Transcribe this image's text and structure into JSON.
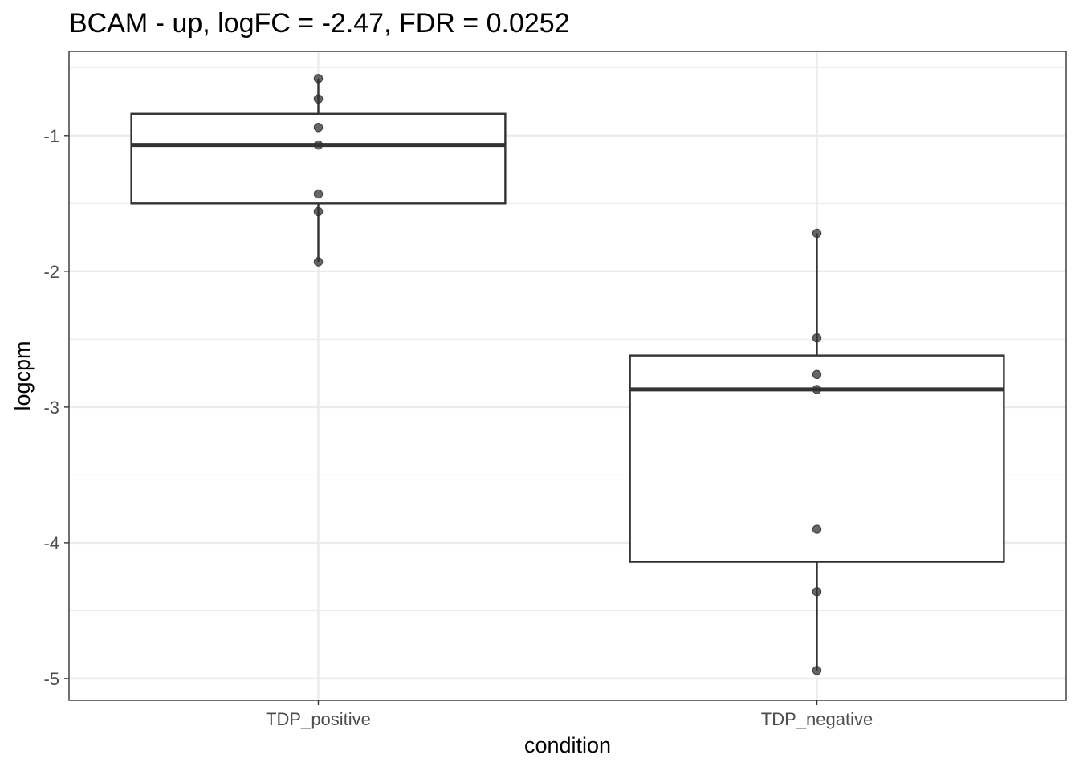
{
  "chart_data": {
    "type": "box",
    "title": "BCAM - up, logFC = -2.47, FDR = 0.0252",
    "xlabel": "condition",
    "ylabel": "logcpm",
    "categories": [
      "TDP_positive",
      "TDP_negative"
    ],
    "ylim": [
      -5.16,
      -0.38
    ],
    "yticks": [
      -1,
      -2,
      -3,
      -4,
      -5
    ],
    "ytick_labels": [
      "-1",
      "-2",
      "-3",
      "-4",
      "-5"
    ],
    "grid": true,
    "legend": "none",
    "boxes": [
      {
        "category": "TDP_positive",
        "min": -1.93,
        "q1": -1.5,
        "median": -1.07,
        "q3": -0.84,
        "max": -0.58,
        "points": [
          -0.58,
          -0.73,
          -0.94,
          -1.07,
          -1.43,
          -1.56,
          -1.93
        ]
      },
      {
        "category": "TDP_negative",
        "min": -4.94,
        "q1": -4.14,
        "median": -2.87,
        "q3": -2.62,
        "max": -1.72,
        "points": [
          -1.72,
          -2.49,
          -2.76,
          -2.87,
          -3.9,
          -4.36,
          -4.94
        ]
      }
    ],
    "colors": {
      "box_stroke": "#333333",
      "point_fill": "#333333",
      "grid": "#ebebeb",
      "panel_border": "#333333",
      "tick_text": "#4d4d4d"
    }
  }
}
